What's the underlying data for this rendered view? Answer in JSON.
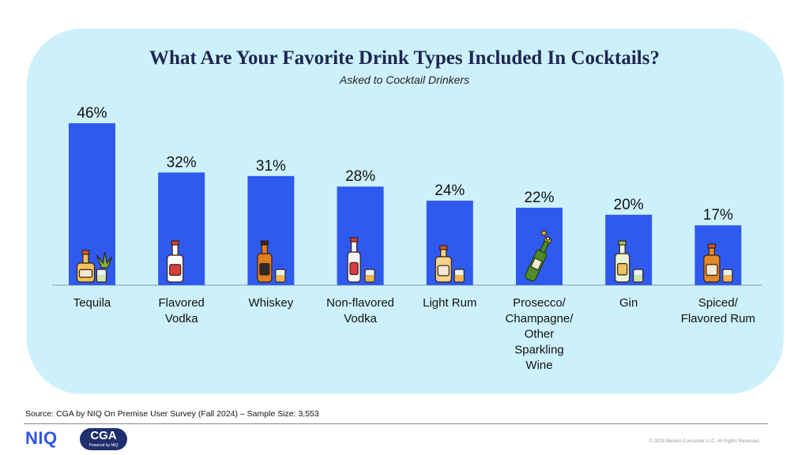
{
  "chart_data": {
    "type": "bar",
    "title": "What Are Your Favorite Drink Types Included In Cocktails?",
    "subtitle": "Asked to Cocktail Drinkers",
    "categories": [
      [
        "Tequila"
      ],
      [
        "Flavored",
        "Vodka"
      ],
      [
        "Whiskey"
      ],
      [
        "Non-flavored",
        "Vodka"
      ],
      [
        "Light Rum"
      ],
      [
        "Prosecco/",
        "Champagne/",
        "Other",
        "Sparkling",
        "Wine"
      ],
      [
        "Gin"
      ],
      [
        "Spiced/",
        "Flavored Rum"
      ]
    ],
    "values": [
      46,
      32,
      31,
      28,
      24,
      22,
      20,
      17
    ],
    "value_labels": [
      "46%",
      "32%",
      "31%",
      "28%",
      "24%",
      "22%",
      "20%",
      "17%"
    ],
    "icons": [
      "tequila-bottle-icon",
      "flavored-vodka-bottle-icon",
      "whiskey-bottle-icon",
      "vodka-bottle-icon",
      "light-rum-bottle-icon",
      "champagne-bottle-icon",
      "gin-bottle-icon",
      "spiced-rum-bottle-icon"
    ],
    "ylim": [
      0,
      46
    ],
    "bar_color": "#2f5af0",
    "grid": false,
    "legend": "none"
  },
  "footer": {
    "source": "Source: CGA by NIQ On Premise User Survey (Fall 2024) – Sample Size: 3,553",
    "logo_niq": "NIQ",
    "logo_cga": "CGA",
    "logo_cga_sub": "Powered by NIQ",
    "copyright": "© 2025 Nielsen Consumer LLC. All Rights Reserved."
  },
  "colors": {
    "panel": "#cdf1fb",
    "title": "#1e2652",
    "bar": "#2f5af0",
    "niq": "#2f54e8",
    "cga": "#1f2f6e"
  }
}
